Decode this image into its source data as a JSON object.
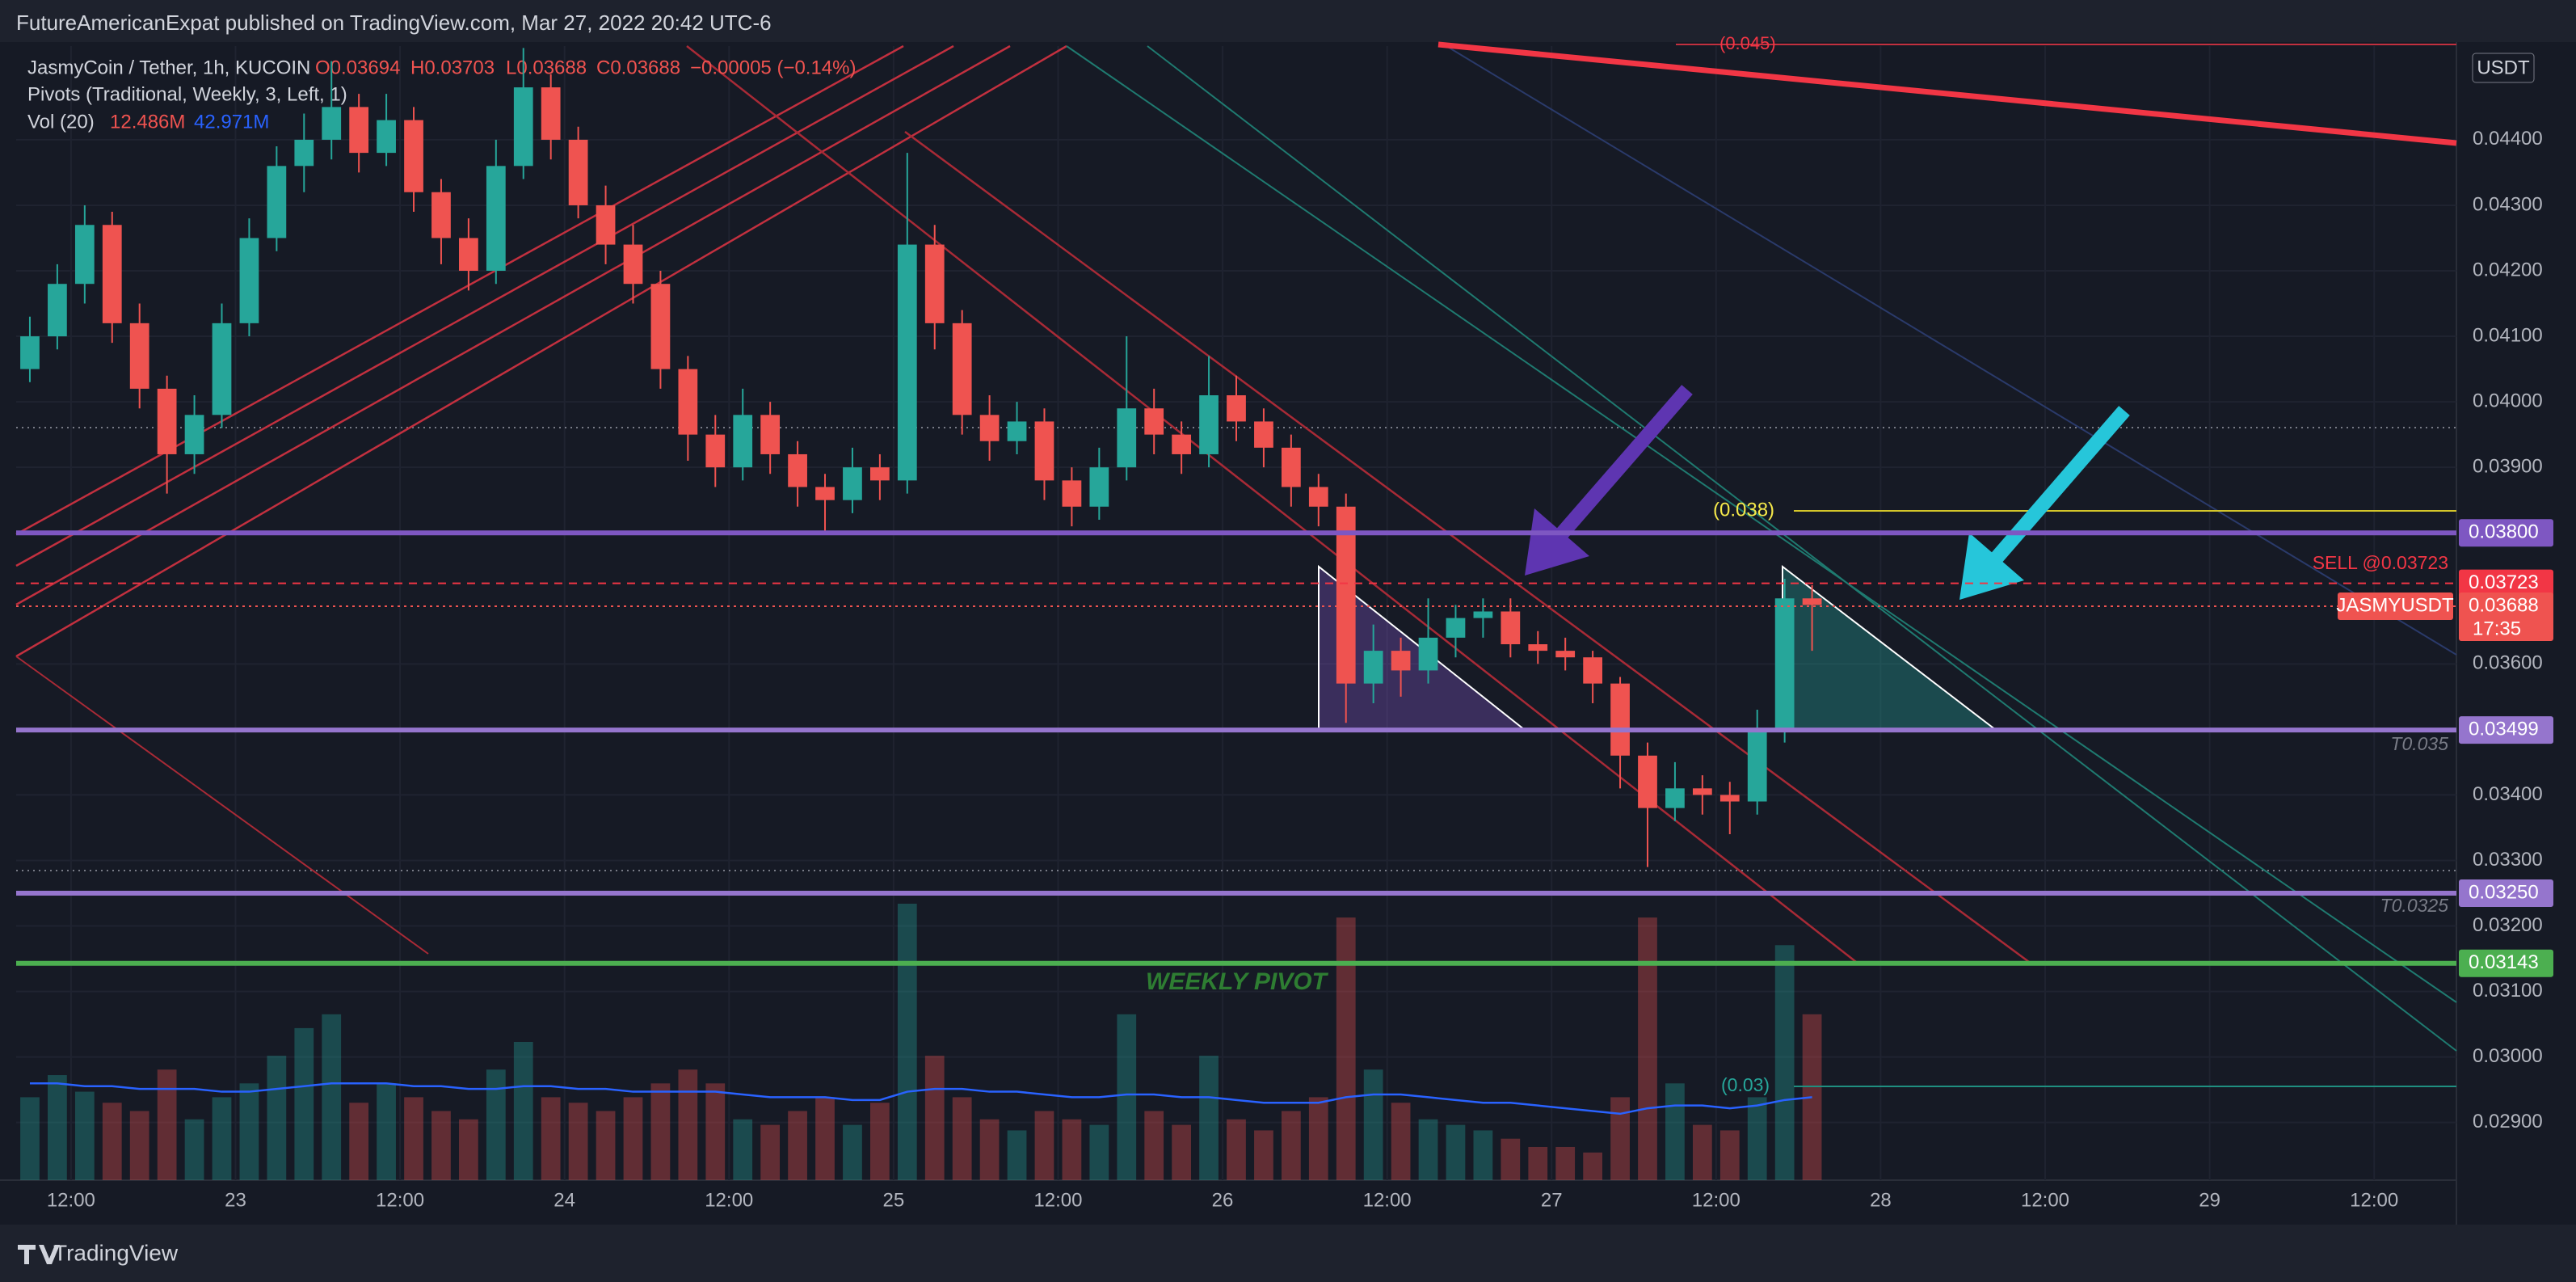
{
  "chart_data": {
    "type": "candlestick",
    "header": "FutureAmericanExpat published on TradingView.com, Mar 27, 2022 20:42 UTC-6",
    "symbol": "JasmyCoin / Tether, 1h, KUCOIN",
    "ohlc_labels": [
      "O0.03694",
      "H0.03703",
      "L0.03688",
      "C0.03688",
      "−0.00005 (−0.14%)"
    ],
    "pivots": "Pivots (Traditional, Weekly, 3, Left, 1)",
    "volume_label": "Vol (20)",
    "volume_readings": [
      "12.486M",
      "42.971M"
    ],
    "currency": "USDT",
    "brand": "TradingView",
    "annotations": [
      "(0.045)",
      "(0.038)",
      "SELL @0.03723",
      "T0.035",
      "T0.0325",
      "WEEKLY PIVOT",
      "(0.03)"
    ],
    "x": [
      33,
      35,
      37,
      39,
      41,
      43,
      45,
      47,
      49,
      51,
      53,
      55,
      57,
      59,
      61,
      63,
      65,
      67,
      69,
      71,
      73,
      75,
      77,
      79,
      81,
      83,
      85,
      87,
      89,
      91,
      93,
      95,
      97,
      99,
      101,
      103,
      105,
      107,
      109,
      111,
      113,
      115,
      117,
      119,
      121,
      123,
      125,
      127,
      129,
      131,
      133,
      135,
      137,
      139,
      141,
      143,
      145,
      147,
      149,
      151,
      153,
      155,
      157,
      159,
      161,
      163
    ],
    "candles": [
      [
        0.0405,
        0.0413,
        0.0403,
        0.041
      ],
      [
        0.041,
        0.0421,
        0.0408,
        0.0418
      ],
      [
        0.0418,
        0.043,
        0.0415,
        0.0427
      ],
      [
        0.0427,
        0.0429,
        0.0409,
        0.0412
      ],
      [
        0.0412,
        0.0415,
        0.0399,
        0.0402
      ],
      [
        0.0402,
        0.0404,
        0.0386,
        0.0392
      ],
      [
        0.0392,
        0.0401,
        0.0389,
        0.0398
      ],
      [
        0.0398,
        0.0415,
        0.0396,
        0.0412
      ],
      [
        0.0412,
        0.0428,
        0.041,
        0.0425
      ],
      [
        0.0425,
        0.0439,
        0.0423,
        0.0436
      ],
      [
        0.0436,
        0.0444,
        0.0432,
        0.044
      ],
      [
        0.044,
        0.0452,
        0.0437,
        0.0445
      ],
      [
        0.0445,
        0.0447,
        0.0435,
        0.0438
      ],
      [
        0.0438,
        0.0447,
        0.0436,
        0.0443
      ],
      [
        0.0443,
        0.0445,
        0.0429,
        0.0432
      ],
      [
        0.0432,
        0.0434,
        0.0421,
        0.0425
      ],
      [
        0.0425,
        0.0428,
        0.0417,
        0.042
      ],
      [
        0.042,
        0.044,
        0.0418,
        0.0436
      ],
      [
        0.0436,
        0.0454,
        0.0434,
        0.0448
      ],
      [
        0.0448,
        0.045,
        0.0437,
        0.044
      ],
      [
        0.044,
        0.0442,
        0.0428,
        0.043
      ],
      [
        0.043,
        0.0433,
        0.0421,
        0.0424
      ],
      [
        0.0424,
        0.0427,
        0.0415,
        0.0418
      ],
      [
        0.0418,
        0.042,
        0.0402,
        0.0405
      ],
      [
        0.0405,
        0.0407,
        0.0391,
        0.0395
      ],
      [
        0.0395,
        0.0398,
        0.0387,
        0.039
      ],
      [
        0.039,
        0.0402,
        0.0388,
        0.0398
      ],
      [
        0.0398,
        0.04,
        0.0389,
        0.0392
      ],
      [
        0.0392,
        0.0394,
        0.0384,
        0.0387
      ],
      [
        0.0387,
        0.0389,
        0.038,
        0.0385
      ],
      [
        0.0385,
        0.0393,
        0.0383,
        0.039
      ],
      [
        0.039,
        0.0392,
        0.0385,
        0.0388
      ],
      [
        0.0388,
        0.0438,
        0.0386,
        0.0424
      ],
      [
        0.0424,
        0.0427,
        0.0408,
        0.0412
      ],
      [
        0.0412,
        0.0414,
        0.0395,
        0.0398
      ],
      [
        0.0398,
        0.0401,
        0.0391,
        0.0394
      ],
      [
        0.0394,
        0.04,
        0.0392,
        0.0397
      ],
      [
        0.0397,
        0.0399,
        0.0385,
        0.0388
      ],
      [
        0.0388,
        0.039,
        0.0381,
        0.0384
      ],
      [
        0.0384,
        0.0393,
        0.0382,
        0.039
      ],
      [
        0.039,
        0.041,
        0.0388,
        0.0399
      ],
      [
        0.0399,
        0.0402,
        0.0392,
        0.0395
      ],
      [
        0.0395,
        0.0397,
        0.0389,
        0.0392
      ],
      [
        0.0392,
        0.0407,
        0.039,
        0.0401
      ],
      [
        0.0401,
        0.0404,
        0.0394,
        0.0397
      ],
      [
        0.0397,
        0.0399,
        0.039,
        0.0393
      ],
      [
        0.0393,
        0.0395,
        0.0384,
        0.0387
      ],
      [
        0.0387,
        0.0389,
        0.0381,
        0.0384
      ],
      [
        0.0384,
        0.0386,
        0.0351,
        0.0357
      ],
      [
        0.0357,
        0.0366,
        0.0354,
        0.0362
      ],
      [
        0.0362,
        0.0364,
        0.0355,
        0.0359
      ],
      [
        0.0359,
        0.037,
        0.0357,
        0.0364
      ],
      [
        0.0364,
        0.0369,
        0.0361,
        0.0367
      ],
      [
        0.0367,
        0.037,
        0.0364,
        0.0368
      ],
      [
        0.0368,
        0.037,
        0.0361,
        0.0363
      ],
      [
        0.0363,
        0.0365,
        0.036,
        0.0362
      ],
      [
        0.0362,
        0.0364,
        0.0359,
        0.0361
      ],
      [
        0.0361,
        0.0362,
        0.0354,
        0.0357
      ],
      [
        0.0357,
        0.0358,
        0.0341,
        0.0346
      ],
      [
        0.0346,
        0.0348,
        0.0329,
        0.0338
      ],
      [
        0.0338,
        0.0345,
        0.0336,
        0.0341
      ],
      [
        0.0341,
        0.0343,
        0.0337,
        0.034
      ],
      [
        0.034,
        0.0342,
        0.0334,
        0.0339
      ],
      [
        0.0339,
        0.0353,
        0.0337,
        0.035
      ],
      [
        0.035,
        0.0373,
        0.0348,
        0.037
      ],
      [
        0.037,
        0.0372,
        0.0362,
        0.0369
      ]
    ],
    "volume": [
      30,
      38,
      32,
      28,
      25,
      40,
      22,
      30,
      35,
      45,
      55,
      60,
      28,
      35,
      30,
      25,
      22,
      40,
      50,
      30,
      28,
      25,
      30,
      35,
      40,
      35,
      22,
      20,
      25,
      30,
      20,
      28,
      100,
      45,
      30,
      22,
      18,
      25,
      22,
      20,
      60,
      25,
      20,
      45,
      22,
      18,
      25,
      30,
      95,
      40,
      28,
      22,
      20,
      18,
      15,
      12,
      12,
      10,
      30,
      95,
      35,
      20,
      18,
      30,
      85,
      60
    ],
    "volume_ma": [
      35,
      35,
      34,
      34,
      33,
      33,
      33,
      32,
      32,
      33,
      34,
      35,
      35,
      35,
      34,
      34,
      33,
      33,
      34,
      34,
      33,
      33,
      32,
      32,
      32,
      32,
      31,
      30,
      30,
      30,
      29,
      29,
      32,
      33,
      33,
      32,
      32,
      31,
      30,
      30,
      31,
      31,
      30,
      30,
      29,
      28,
      28,
      28,
      30,
      31,
      31,
      30,
      29,
      28,
      28,
      27,
      26,
      25,
      24,
      26,
      27,
      27,
      26,
      27,
      29,
      30
    ],
    "volume_lim": [
      0,
      100
    ],
    "up_color": "#26a69a",
    "down_color": "#ef5350",
    "ma_color": "#2962ff",
    "xlim": [
      32,
      210
    ],
    "xticks": [
      {
        "value": 36,
        "label": "12:00"
      },
      {
        "value": 48,
        "label": "23"
      },
      {
        "value": 60,
        "label": "12:00"
      },
      {
        "value": 72,
        "label": "24"
      },
      {
        "value": 84,
        "label": "12:00"
      },
      {
        "value": 96,
        "label": "25"
      },
      {
        "value": 108,
        "label": "12:00"
      },
      {
        "value": 120,
        "label": "26"
      },
      {
        "value": 132,
        "label": "12:00"
      },
      {
        "value": 144,
        "label": "27"
      },
      {
        "value": 156,
        "label": "12:00"
      },
      {
        "value": 168,
        "label": "28"
      },
      {
        "value": 180,
        "label": "12:00"
      },
      {
        "value": 192,
        "label": "29"
      },
      {
        "value": 204,
        "label": "12:00"
      }
    ],
    "ylim": [
      0.02812,
      0.04543
    ],
    "yticks": [
      {
        "value": 0.044,
        "label": "0.04400"
      },
      {
        "value": 0.043,
        "label": "0.04300"
      },
      {
        "value": 0.042,
        "label": "0.04200"
      },
      {
        "value": 0.041,
        "label": "0.04100"
      },
      {
        "value": 0.04,
        "label": "0.04000"
      },
      {
        "value": 0.039,
        "label": "0.03900"
      },
      {
        "value": 0.036,
        "label": "0.03600"
      },
      {
        "value": 0.034,
        "label": "0.03400"
      },
      {
        "value": 0.033,
        "label": "0.03300"
      },
      {
        "value": 0.032,
        "label": "0.03200"
      },
      {
        "value": 0.031,
        "label": "0.03100"
      },
      {
        "value": 0.03,
        "label": "0.03000"
      },
      {
        "value": 0.029,
        "label": "0.02900"
      }
    ],
    "grid": true,
    "levels": [
      {
        "value": 0.038,
        "label": "0.03800",
        "color": "#7e57c2",
        "style": "solid"
      },
      {
        "value": 0.03723,
        "label": "0.03723",
        "color": "#f23645",
        "style": "dashed"
      },
      {
        "value": 0.03688,
        "label": "0.03688",
        "color": "#ef5350",
        "style": "dotted",
        "name": "JASMYUSDT",
        "countdown": "17:35"
      },
      {
        "value": 0.03499,
        "label": "0.03499",
        "color": "#9575cd",
        "style": "solid"
      },
      {
        "value": 0.0325,
        "label": "0.03250",
        "color": "#9575cd",
        "style": "solid"
      },
      {
        "value": 0.03143,
        "label": "0.03143",
        "color": "#4caf50",
        "style": "solid"
      }
    ]
  }
}
